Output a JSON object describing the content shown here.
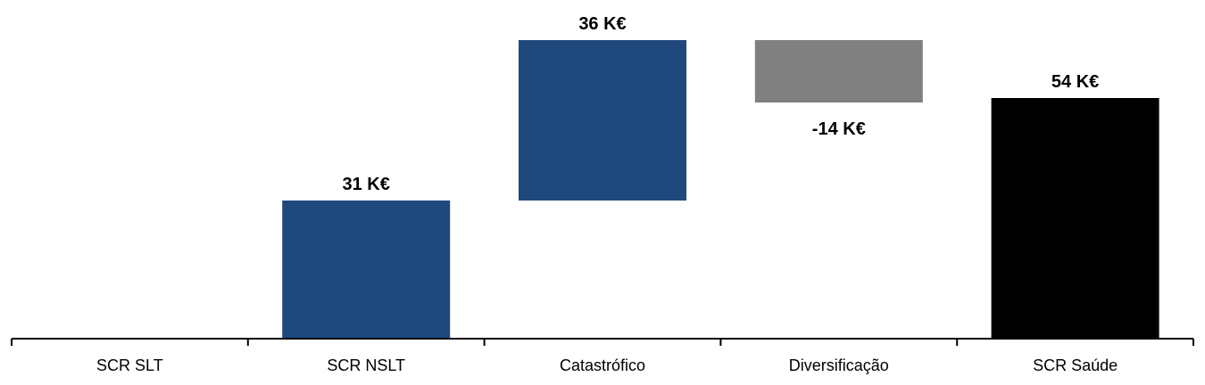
{
  "chart_data": {
    "type": "bar",
    "subtype": "waterfall",
    "categories": [
      "SCR SLT",
      "SCR NSLT",
      "Catastrófico",
      "Diversificação",
      "SCR Saúde"
    ],
    "values": [
      0,
      31,
      36,
      -14,
      54
    ],
    "measures": [
      "relative",
      "relative",
      "relative",
      "relative",
      "total"
    ],
    "data_labels": [
      "",
      "31 K€",
      "36 K€",
      "-14 K€",
      "54 K€"
    ],
    "unit": "K€",
    "colors": [
      "#1f497d",
      "#1f497d",
      "#1f497d",
      "#808080",
      "#000000"
    ],
    "ylim": [
      0,
      67
    ],
    "grid": false,
    "legend": "none",
    "title": "",
    "xlabel": "",
    "ylabel": ""
  }
}
